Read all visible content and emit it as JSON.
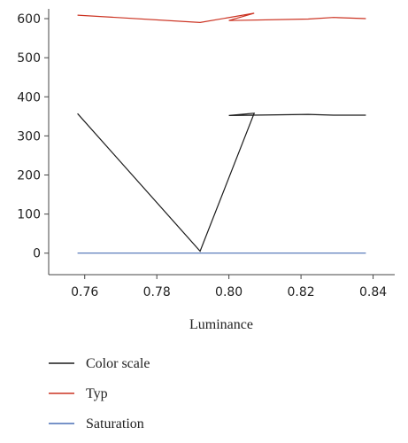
{
  "chart_data": {
    "type": "line",
    "title": "",
    "xlabel": "Luminance",
    "ylabel": "",
    "xlim": [
      0.75,
      0.846
    ],
    "ylim": [
      -55,
      625
    ],
    "xticks": [
      0.76,
      0.78,
      0.8,
      0.82,
      0.84
    ],
    "xtick_labels": [
      "0.76",
      "0.78",
      "0.80",
      "0.82",
      "0.84"
    ],
    "yticks": [
      0,
      100,
      200,
      300,
      400,
      500,
      600
    ],
    "ytick_labels": [
      "0",
      "100",
      "200",
      "300",
      "400",
      "500",
      "600"
    ],
    "grid": false,
    "legend_position": "bottom",
    "series": [
      {
        "name": "Color scale",
        "color": "#1a1a1a",
        "points": [
          [
            0.758,
            357
          ],
          [
            0.792,
            5
          ],
          [
            0.807,
            358
          ],
          [
            0.8,
            352
          ],
          [
            0.822,
            355
          ],
          [
            0.829,
            353
          ],
          [
            0.838,
            353
          ]
        ]
      },
      {
        "name": "Typ",
        "color": "#cc3322",
        "points": [
          [
            0.758,
            609
          ],
          [
            0.792,
            590
          ],
          [
            0.807,
            614
          ],
          [
            0.8,
            595
          ],
          [
            0.822,
            599
          ],
          [
            0.829,
            603
          ],
          [
            0.838,
            600
          ]
        ]
      },
      {
        "name": "Saturation",
        "color": "#4a6fb5",
        "points": [
          [
            0.758,
            0
          ],
          [
            0.838,
            0
          ]
        ]
      }
    ]
  }
}
